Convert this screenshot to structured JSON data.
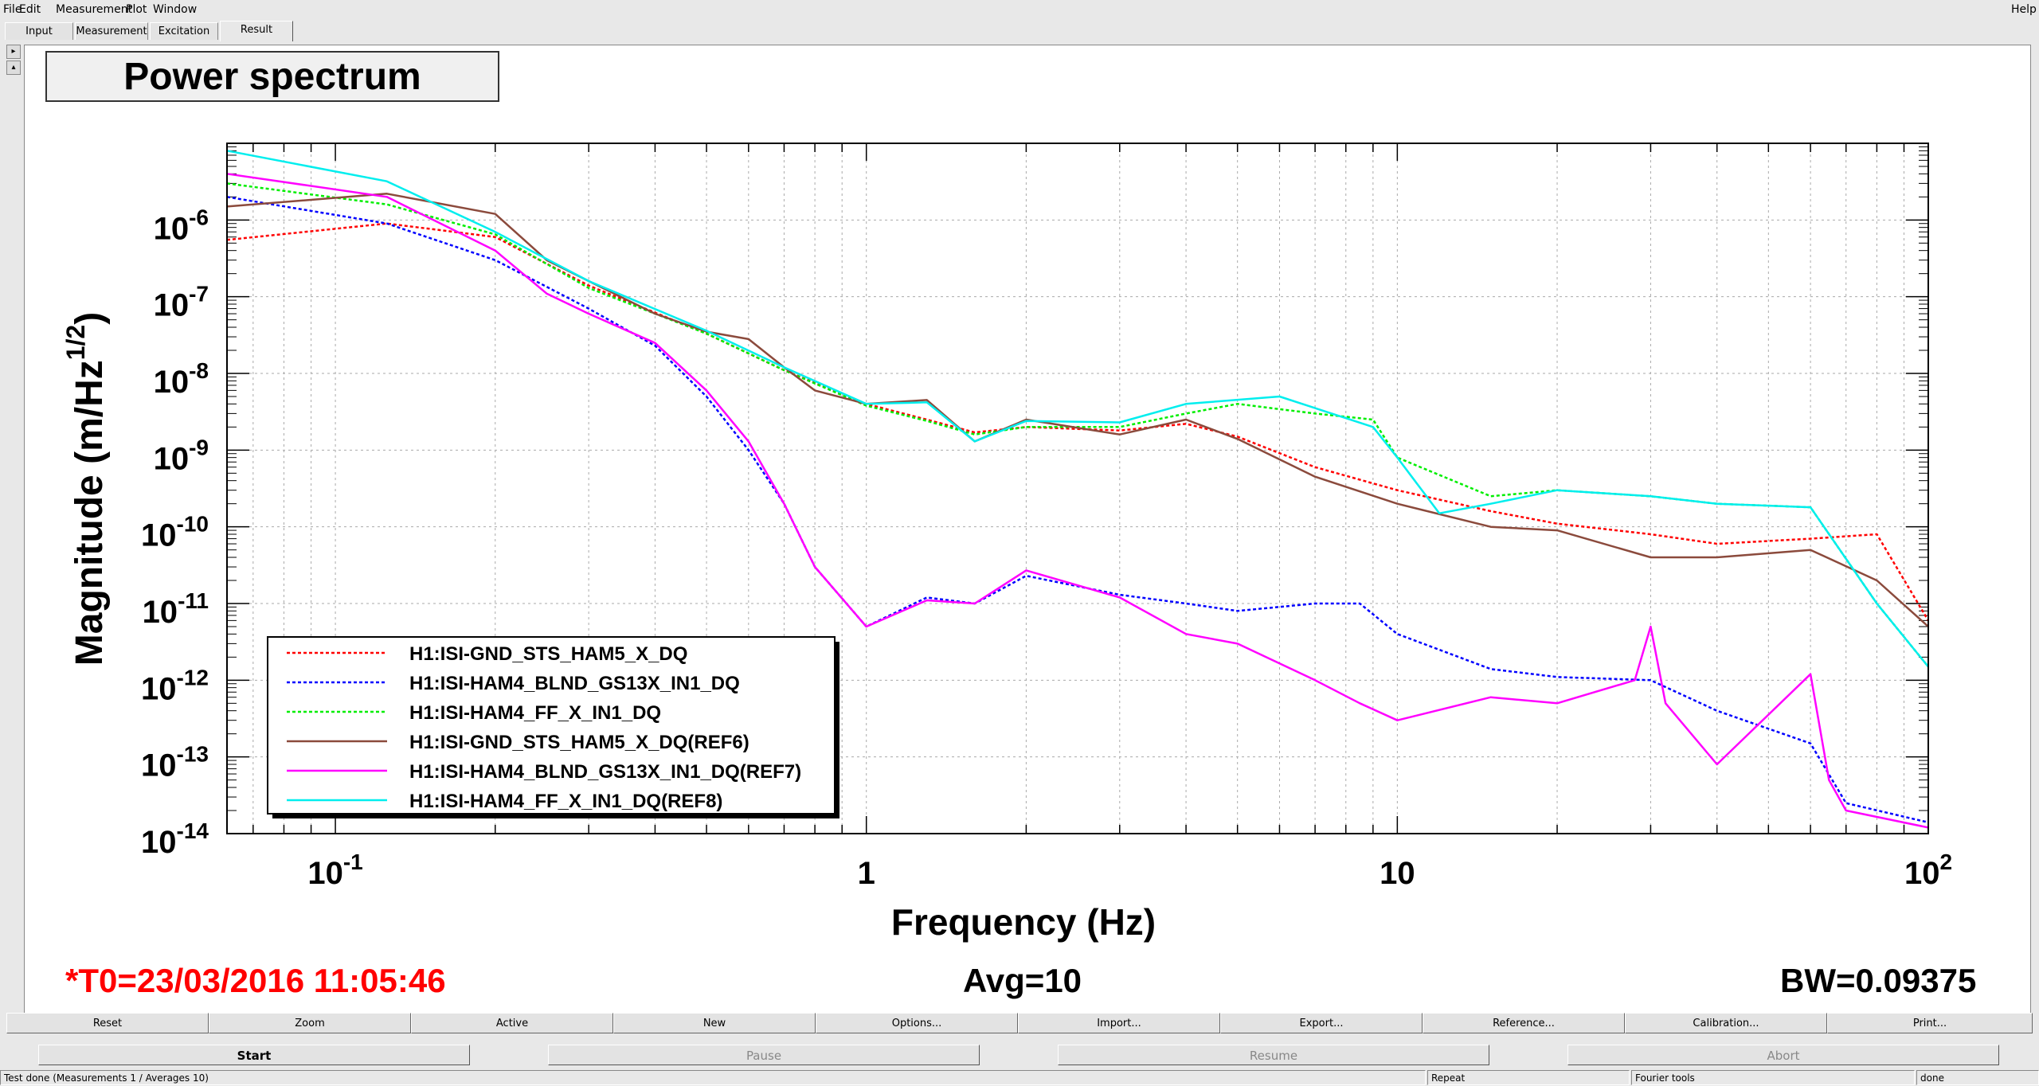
{
  "menu": {
    "file": "File",
    "edit": "Edit",
    "measurement": "Measurement",
    "plot": "Plot",
    "window": "Window",
    "help": "Help"
  },
  "tabs": [
    "Input",
    "Measurement",
    "Excitation",
    "Result"
  ],
  "active_tab": "Result",
  "plot_title": "Power spectrum",
  "footer": {
    "t0": "*T0=23/03/2016 11:05:46",
    "avg": "Avg=10",
    "bw": "BW=0.09375"
  },
  "colors": {
    "t0": "#ff0000"
  },
  "toolbar_buttons": [
    "Reset",
    "Zoom",
    "Active",
    "New",
    "Options...",
    "Import...",
    "Export...",
    "Reference...",
    "Calibration...",
    "Print..."
  ],
  "control_buttons": {
    "start": "Start",
    "pause": "Pause",
    "resume": "Resume",
    "abort": "Abort"
  },
  "status": {
    "left": "Test done (Measurements 1 / Averages 10)",
    "repeat": "Repeat",
    "tools": "Fourier tools",
    "state": "done"
  },
  "chart_data": {
    "type": "line",
    "title": "Power spectrum",
    "xlabel": "Frequency (Hz)",
    "ylabel_main": "Magnitude (m/Hz",
    "ylabel_sup": "1/2",
    "ylabel_close": ")",
    "xscale": "log",
    "yscale": "log",
    "xlim": [
      0.0625,
      100
    ],
    "ylim": [
      1e-14,
      1e-05
    ],
    "grid": true,
    "legend_position": "bottom-left",
    "x_ticks": [
      {
        "value": 0.1,
        "base": "10",
        "exp": "-1"
      },
      {
        "value": 1,
        "label": "1"
      },
      {
        "value": 10,
        "label": "10"
      },
      {
        "value": 100,
        "base": "10",
        "exp": "2"
      }
    ],
    "y_ticks": [
      {
        "value": 1e-06,
        "base": "10",
        "exp": "-6"
      },
      {
        "value": 1e-07,
        "base": "10",
        "exp": "-7"
      },
      {
        "value": 1e-08,
        "base": "10",
        "exp": "-8"
      },
      {
        "value": 1e-09,
        "base": "10",
        "exp": "-9"
      },
      {
        "value": 1e-10,
        "base": "10",
        "exp": "-10"
      },
      {
        "value": 1e-11,
        "base": "10",
        "exp": "-11"
      },
      {
        "value": 1e-12,
        "base": "10",
        "exp": "-12"
      },
      {
        "value": 1e-13,
        "base": "10",
        "exp": "-13"
      },
      {
        "value": 1e-14,
        "base": "10",
        "exp": "-14"
      }
    ],
    "series": [
      {
        "name": "H1:ISI-GND_STS_HAM5_X_DQ",
        "color": "#ff0000",
        "dash": true,
        "x": [
          0.0625,
          0.125,
          0.2,
          0.3,
          0.5,
          0.7,
          1,
          1.3,
          1.6,
          2,
          3,
          4,
          5,
          7,
          10,
          15,
          20,
          30,
          40,
          60,
          80,
          100
        ],
        "y": [
          5.5e-07,
          9e-07,
          6e-07,
          1.4e-07,
          3.3e-08,
          1.1e-08,
          4e-09,
          2.5e-09,
          1.7e-09,
          2e-09,
          1.8e-09,
          2.2e-09,
          1.5e-09,
          6e-10,
          3e-10,
          1.6e-10,
          1.1e-10,
          8e-11,
          6e-11,
          7e-11,
          8e-11,
          6e-12
        ]
      },
      {
        "name": "H1:ISI-HAM4_BLND_GS13X_IN1_DQ",
        "color": "#0000ff",
        "dash": true,
        "x": [
          0.0625,
          0.125,
          0.2,
          0.3,
          0.4,
          0.5,
          0.6,
          0.7,
          0.8,
          1,
          1.3,
          1.6,
          2,
          3,
          4,
          5,
          7,
          8.5,
          10,
          15,
          20,
          30,
          40,
          60,
          70,
          100
        ],
        "y": [
          2e-06,
          9e-07,
          3e-07,
          7e-08,
          2.3e-08,
          5e-09,
          1e-09,
          2e-10,
          3e-11,
          5e-12,
          1.2e-11,
          1e-11,
          2.3e-11,
          1.3e-11,
          1e-11,
          8e-12,
          1e-11,
          1e-11,
          4e-12,
          1.4e-12,
          1.1e-12,
          1e-12,
          4e-13,
          1.5e-13,
          2.5e-14,
          1.4e-14
        ]
      },
      {
        "name": "H1:ISI-HAM4_FF_X_IN1_DQ",
        "color": "#00ee00",
        "dash": true,
        "x": [
          0.0625,
          0.125,
          0.2,
          0.3,
          0.5,
          0.7,
          1,
          1.3,
          1.6,
          2,
          3,
          4,
          5,
          7,
          9,
          10,
          15,
          20,
          30,
          40,
          60,
          80,
          100
        ],
        "y": [
          3e-06,
          1.6e-06,
          6.5e-07,
          1.3e-07,
          3.3e-08,
          1.1e-08,
          3.8e-09,
          2.4e-09,
          1.6e-09,
          2e-09,
          2e-09,
          3e-09,
          4e-09,
          3e-09,
          2.5e-09,
          8e-10,
          2.5e-10,
          3e-10,
          2.5e-10,
          2e-10,
          1.8e-10,
          1e-11,
          1.5e-12
        ]
      },
      {
        "name": "H1:ISI-GND_STS_HAM5_X_DQ(REF6)",
        "color": "#8b4a3c",
        "dash": false,
        "x": [
          0.0625,
          0.125,
          0.2,
          0.25,
          0.3,
          0.4,
          0.5,
          0.6,
          0.7,
          0.8,
          1,
          1.3,
          1.6,
          2,
          3,
          4,
          5,
          7,
          10,
          15,
          20,
          30,
          40,
          60,
          80,
          100
        ],
        "y": [
          1.5e-06,
          2.2e-06,
          1.2e-06,
          3e-07,
          1.6e-07,
          6e-08,
          3.5e-08,
          2.8e-08,
          1.2e-08,
          6e-09,
          4e-09,
          4.5e-09,
          1.3e-09,
          2.5e-09,
          1.6e-09,
          2.5e-09,
          1.4e-09,
          4.5e-10,
          2e-10,
          1e-10,
          9e-11,
          4e-11,
          4e-11,
          5e-11,
          2e-11,
          5e-12
        ]
      },
      {
        "name": "H1:ISI-HAM4_BLND_GS13X_IN1_DQ(REF7)",
        "color": "#ff00ff",
        "dash": false,
        "x": [
          0.0625,
          0.125,
          0.2,
          0.25,
          0.3,
          0.4,
          0.5,
          0.6,
          0.7,
          0.8,
          1,
          1.3,
          1.6,
          2,
          3,
          4,
          5,
          7,
          8.5,
          10,
          15,
          20,
          28,
          30,
          32,
          40,
          60,
          65,
          70,
          100
        ],
        "y": [
          4e-06,
          2e-06,
          4e-07,
          1.1e-07,
          6e-08,
          2.5e-08,
          6e-09,
          1.3e-09,
          2e-10,
          3e-11,
          5e-12,
          1.1e-11,
          1e-11,
          2.7e-11,
          1.2e-11,
          4e-12,
          3e-12,
          1e-12,
          5e-13,
          3e-13,
          6e-13,
          5e-13,
          1e-12,
          5e-12,
          5e-13,
          8e-14,
          1.2e-12,
          5e-14,
          2e-14,
          1.2e-14
        ]
      },
      {
        "name": "H1:ISI-HAM4_FF_X_IN1_DQ(REF8)",
        "color": "#00eeee",
        "dash": false,
        "x": [
          0.0625,
          0.125,
          0.2,
          0.3,
          0.5,
          0.7,
          1,
          1.3,
          1.6,
          2,
          3,
          4,
          6,
          9,
          10,
          12,
          15,
          20,
          30,
          40,
          60,
          80,
          100
        ],
        "y": [
          8e-06,
          3.2e-06,
          7e-07,
          1.6e-07,
          3.6e-08,
          1.2e-08,
          4e-09,
          4.2e-09,
          1.3e-09,
          2.4e-09,
          2.3e-09,
          4e-09,
          5e-09,
          2e-09,
          8e-10,
          1.5e-10,
          2e-10,
          3e-10,
          2.5e-10,
          2e-10,
          1.8e-10,
          1e-11,
          1.5e-12
        ]
      }
    ]
  }
}
